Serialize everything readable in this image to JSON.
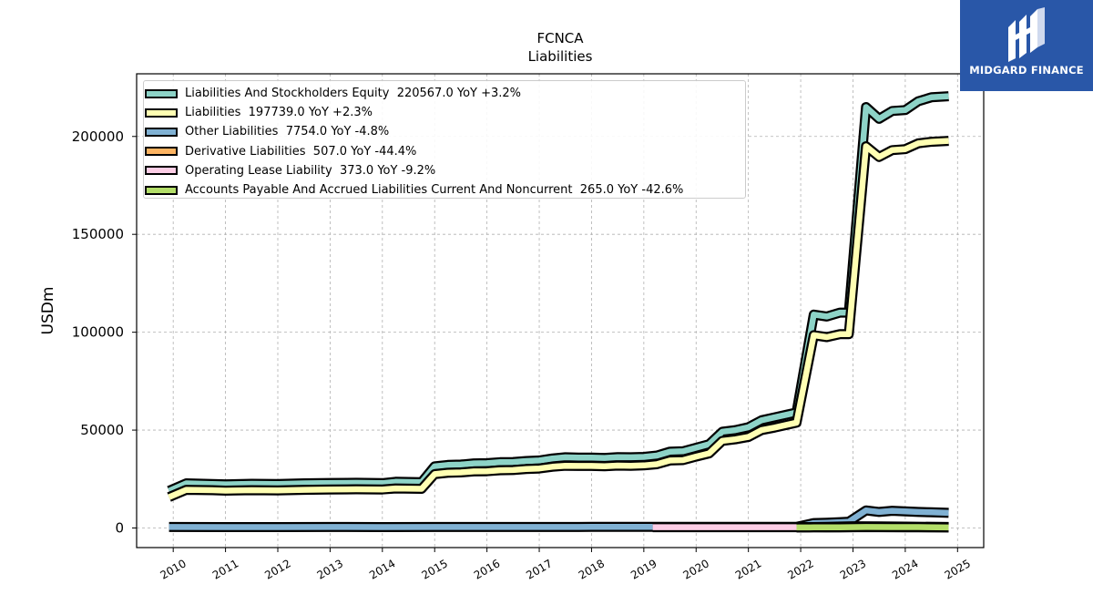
{
  "chart_data": {
    "type": "area",
    "title": "FCNCA",
    "subtitle": "Liabilities",
    "ylabel": "USDm",
    "xlabel": "",
    "ylim": [
      -10000,
      232000
    ],
    "xlim": [
      2009.3,
      2025.5
    ],
    "yticks": [
      0,
      50000,
      100000,
      150000,
      200000
    ],
    "ytick_labels": [
      "0",
      "50000",
      "100000",
      "150000",
      "200000"
    ],
    "xticks": [
      "2010",
      "2011",
      "2012",
      "2013",
      "2014",
      "2015",
      "2016",
      "2017",
      "2018",
      "2019",
      "2020",
      "2021",
      "2022",
      "2023",
      "2024",
      "2025"
    ],
    "grid": true,
    "legend_position": "top-left",
    "series": [
      {
        "name": "Liabilities And Stockholders Equity",
        "legend": "Liabilities And Stockholders Equity  220567.0 YoY +3.2%",
        "color": "#8dd3c7",
        "x": [
          2009.92,
          2010.25,
          2010.75,
          2011.0,
          2011.5,
          2012.0,
          2012.5,
          2013.0,
          2013.5,
          2014.0,
          2014.25,
          2014.75,
          2015.0,
          2015.25,
          2015.5,
          2015.75,
          2016.0,
          2016.25,
          2016.5,
          2016.75,
          2017.0,
          2017.25,
          2017.5,
          2017.75,
          2018.0,
          2018.25,
          2018.5,
          2018.75,
          2019.0,
          2019.25,
          2019.5,
          2019.75,
          2020.0,
          2020.25,
          2020.5,
          2020.75,
          2021.0,
          2021.25,
          2021.5,
          2021.75,
          2021.92,
          2022.25,
          2022.5,
          2022.75,
          2022.92,
          2023.25,
          2023.5,
          2023.75,
          2024.0,
          2024.25,
          2024.5,
          2024.83
        ],
        "values": [
          19000,
          22800,
          22500,
          22300,
          22600,
          22500,
          22800,
          23000,
          23100,
          22900,
          23600,
          23400,
          31500,
          32200,
          32400,
          33000,
          33100,
          33600,
          33700,
          34200,
          34500,
          35500,
          36100,
          36000,
          36000,
          35800,
          36200,
          36100,
          36300,
          37000,
          39000,
          39200,
          41000,
          42800,
          49200,
          50000,
          51500,
          55000,
          56500,
          58000,
          59000,
          109000,
          108000,
          110000,
          110000,
          215000,
          209000,
          213000,
          213500,
          218000,
          220000,
          220567
        ]
      },
      {
        "name": "Liabilities",
        "legend": "Liabilities  197739.0 YoY +2.3%",
        "color": "#ffffb3",
        "x": [
          2009.92,
          2010.25,
          2010.75,
          2011.0,
          2011.5,
          2012.0,
          2012.5,
          2013.0,
          2013.5,
          2014.0,
          2014.25,
          2014.75,
          2015.0,
          2015.25,
          2015.5,
          2015.75,
          2016.0,
          2016.25,
          2016.5,
          2016.75,
          2017.0,
          2017.25,
          2017.5,
          2017.75,
          2018.0,
          2018.25,
          2018.5,
          2018.75,
          2019.0,
          2019.25,
          2019.5,
          2019.75,
          2020.0,
          2020.25,
          2020.5,
          2020.75,
          2021.0,
          2021.25,
          2021.5,
          2021.75,
          2021.92,
          2022.25,
          2022.5,
          2022.75,
          2022.92,
          2023.25,
          2023.5,
          2023.75,
          2024.0,
          2024.25,
          2024.5,
          2024.83
        ],
        "values": [
          15800,
          19500,
          19300,
          19100,
          19300,
          19200,
          19500,
          19700,
          19800,
          19700,
          20200,
          20000,
          27500,
          28200,
          28400,
          28900,
          29000,
          29500,
          29600,
          30100,
          30400,
          31300,
          31800,
          31700,
          31700,
          31500,
          31900,
          31800,
          32000,
          32600,
          34500,
          34700,
          36500,
          38100,
          44500,
          45300,
          46500,
          50000,
          51300,
          52800,
          53800,
          98500,
          97500,
          99000,
          99000,
          195000,
          189500,
          193000,
          193500,
          196500,
          197300,
          197739
        ]
      },
      {
        "name": "Other Liabilities",
        "legend": "Other Liabilities  7754.0 YoY -4.8%",
        "color": "#80b1d3",
        "x": [
          2009.92,
          2011.0,
          2012.0,
          2013.0,
          2014.0,
          2015.0,
          2016.0,
          2017.0,
          2018.0,
          2019.0,
          2020.0,
          2021.0,
          2021.92,
          2022.25,
          2022.5,
          2022.75,
          2022.92,
          2023.25,
          2023.5,
          2023.75,
          2024.0,
          2024.25,
          2024.5,
          2024.83
        ],
        "values": [
          500,
          450,
          450,
          500,
          480,
          500,
          520,
          540,
          560,
          560,
          560,
          560,
          600,
          2500,
          2700,
          3000,
          3200,
          9000,
          8200,
          8800,
          8500,
          8200,
          8000,
          7754
        ]
      },
      {
        "name": "Derivative Liabilities",
        "legend": "Derivative Liabilities  507.0 YoY -44.4%",
        "color": "#fdb462",
        "x": [
          2021.92,
          2022.5,
          2023.0,
          2023.5,
          2024.0,
          2024.83
        ],
        "values": [
          400,
          600,
          900,
          800,
          700,
          507
        ]
      },
      {
        "name": "Operating Lease Liability",
        "legend": "Operating Lease Liability  373.0 YoY -9.2%",
        "color": "#fccde5",
        "x": [
          2019.17,
          2020.0,
          2021.0,
          2021.92,
          2022.5,
          2023.0,
          2023.5,
          2024.0,
          2024.83
        ],
        "values": [
          420,
          430,
          420,
          410,
          400,
          420,
          410,
          400,
          373
        ]
      },
      {
        "name": "Accounts Payable And Accrued Liabilities Current And Noncurrent",
        "legend": "Accounts Payable And Accrued Liabilities Current And Noncurrent  265.0 YoY -42.6%",
        "color": "#b3de69",
        "x": [
          2021.92,
          2022.25,
          2022.75,
          2023.25,
          2023.75,
          2024.25,
          2024.83
        ],
        "values": [
          300,
          350,
          400,
          500,
          480,
          450,
          265
        ]
      }
    ]
  },
  "logo": {
    "text": "MIDGARD FINANCE",
    "color": "#2957a8"
  }
}
